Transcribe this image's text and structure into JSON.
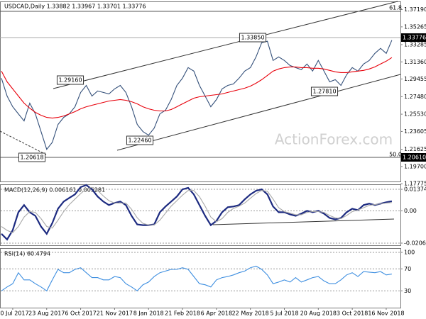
{
  "chart_data": [
    {
      "type": "line",
      "title": "USDCAD,Daily 1.33882 1.33967 1.33701 1.33776",
      "watermark": "ActionForex.com",
      "categories": [
        null,
        null,
        "10 Jul 2017",
        null,
        null,
        null,
        null,
        null,
        "23 Aug 2017",
        null,
        null,
        null,
        null,
        null,
        "6 Oct 2017",
        null,
        null,
        null,
        null,
        null,
        "21 Nov 2017",
        null,
        null,
        null,
        null,
        null,
        "8 Jan 2018",
        null,
        null,
        null,
        null,
        null,
        "21 Feb 2018",
        null,
        null,
        null,
        null,
        null,
        "6 Apr 2018",
        null,
        null,
        null,
        null,
        null,
        "22 May 2018",
        null,
        null,
        null,
        null,
        null,
        "5 Jul 2018",
        null,
        null,
        null,
        null,
        null,
        "20 Aug 2018",
        null,
        null,
        null,
        null,
        null,
        "3 Oct 2018",
        null,
        null,
        null,
        null,
        null,
        "16 Nov 2018",
        null
      ],
      "series": [
        {
          "color": "#34507a",
          "values": [
            1.2954,
            1.2755,
            1.2636,
            1.2557,
            1.2478,
            1.2676,
            1.2557,
            1.2359,
            1.2161,
            1.224,
            1.2438,
            1.2517,
            1.2557,
            1.2636,
            1.2795,
            1.2874,
            1.2755,
            1.2811,
            1.2795,
            1.2779,
            1.2835,
            1.2874,
            1.2795,
            1.2636,
            1.2438,
            1.2359,
            1.2319,
            1.2398,
            1.2557,
            1.2597,
            1.2716,
            1.2874,
            1.2954,
            1.3072,
            1.3033,
            1.2874,
            1.2755,
            1.2636,
            1.2716,
            1.2835,
            1.2874,
            1.289,
            1.2954,
            1.3033,
            1.3072,
            1.3191,
            1.335,
            1.3366,
            1.3152,
            1.3191,
            1.3152,
            1.3096,
            1.3072,
            1.3049,
            1.3112,
            1.3033,
            1.3152,
            1.3033,
            1.2914,
            1.2938,
            1.2874,
            1.2993,
            1.3072,
            1.3033,
            1.3112,
            1.3152,
            1.3231,
            1.3287,
            1.3231,
            1.3378
          ]
        },
        {
          "color": "#e8000b",
          "values": [
            1.3033,
            1.2914,
            1.2835,
            1.2755,
            1.2676,
            1.262,
            1.2573,
            1.2541,
            1.2517,
            1.2509,
            1.2517,
            1.2533,
            1.2557,
            1.2581,
            1.2613,
            1.2636,
            1.2652,
            1.2668,
            1.2684,
            1.27,
            1.2708,
            1.2716,
            1.2708,
            1.2692,
            1.2668,
            1.2636,
            1.2613,
            1.2597,
            1.2589,
            1.2589,
            1.2605,
            1.2636,
            1.2668,
            1.27,
            1.2731,
            1.2747,
            1.2755,
            1.2763,
            1.2771,
            1.2779,
            1.2795,
            1.2811,
            1.2827,
            1.2843,
            1.2866,
            1.2898,
            1.2938,
            1.2985,
            1.3033,
            1.3057,
            1.3072,
            1.308,
            1.308,
            1.3072,
            1.3072,
            1.3065,
            1.3065,
            1.3057,
            1.3041,
            1.3025,
            1.3017,
            1.3017,
            1.3025,
            1.3033,
            1.3041,
            1.3057,
            1.308,
            1.3112,
            1.3144,
            1.3184
          ]
        }
      ],
      "ylim": [
        1.1803,
        1.3802
      ],
      "yticks": [
        {
          "value": 1.3719,
          "label": "1.37190"
        },
        {
          "value": 1.35265,
          "label": "1.35265"
        },
        {
          "value": 1.33285,
          "label": "1.33285"
        },
        {
          "value": 1.3136,
          "label": "1.31360"
        },
        {
          "value": 1.29455,
          "label": "1.29455"
        },
        {
          "value": 1.2748,
          "label": "1.27480"
        },
        {
          "value": 1.2553,
          "label": "1.25530"
        },
        {
          "value": 1.23605,
          "label": "1.23605"
        },
        {
          "value": 1.21625,
          "label": "1.21625"
        },
        {
          "value": 1.197,
          "label": "1.19700"
        },
        {
          "value": 1.17775,
          "label": "1.17775"
        }
      ],
      "price_labels": [
        "1.33776",
        "1.20610"
      ],
      "annotations": [
        "1.33850",
        "1.29160",
        "1.22460",
        "1.20618",
        "1.27810",
        "61.8",
        "50.0"
      ],
      "grid": false
    },
    {
      "type": "line",
      "title": "MACD(12,26,9) 0.006161 0.005281",
      "series": [
        {
          "color": "#1c2a80",
          "values": [
            -0.01466,
            -0.01832,
            -0.01237,
            -0.00092,
            0.00366,
            -0.00092,
            -0.00321,
            -0.01008,
            -0.01466,
            -0.00779,
            0.00137,
            0.00595,
            0.00824,
            0.01053,
            0.01511,
            0.01649,
            0.01374,
            0.00916,
            0.00595,
            0.00366,
            0.00504,
            0.00595,
            0.00366,
            -0.00321,
            -0.0087,
            -0.00916,
            -0.00916,
            -0.0087,
            -0.00092,
            0.00275,
            0.00595,
            0.00916,
            0.01374,
            0.01466,
            0.01053,
            0.00366,
            -0.00321,
            -0.00916,
            -0.00641,
            -0.00092,
            0.00229,
            0.00275,
            0.00366,
            0.00733,
            0.01053,
            0.01282,
            0.01374,
            0.01053,
            0.00275,
            -0.00092,
            -0.00092,
            -0.00229,
            -0.00321,
            -0.00183,
            0,
            -0.00092,
            0,
            -0.00183,
            -0.00458,
            -0.0055,
            -0.00458,
            -0.00092,
            0.00137,
            0.00046,
            0.00366,
            0.00458,
            0.00366,
            0.00458,
            0.0055,
            0.00616
          ]
        },
        {
          "color": "#a9a9a9",
          "values": [
            -0.01,
            -0.0125,
            -0.014,
            -0.01,
            -0.004,
            -0.0005,
            -0.001,
            -0.005,
            -0.01,
            -0.011,
            -0.006,
            -0.0005,
            0.004,
            0.0075,
            0.011,
            0.014,
            0.015,
            0.013,
            0.0095,
            0.0065,
            0.005,
            0.005,
            0.005,
            0.001,
            -0.0045,
            -0.008,
            -0.009,
            -0.009,
            -0.006,
            -0.0015,
            0.003,
            0.0065,
            0.01,
            0.013,
            0.013,
            0.009,
            0.003,
            -0.004,
            -0.007,
            -0.005,
            -0.001,
            0.0015,
            0.003,
            0.005,
            0.008,
            0.011,
            0.013,
            0.0125,
            0.0075,
            0.002,
            -0.0005,
            -0.0015,
            -0.0025,
            -0.0025,
            -0.001,
            -0.0005,
            -0.0005,
            -0.001,
            -0.003,
            -0.0045,
            -0.005,
            -0.003,
            -0.0005,
            0.0005,
            0.002,
            0.0035,
            0.004,
            0.0045,
            0.005,
            0.00528
          ]
        }
      ],
      "ylim": [
        -0.02202,
        0.01649
      ],
      "yticks": [
        0.013745,
        {
          "value": 0,
          "label": "0.00"
        },
        -0.020652
      ],
      "grid": true
    },
    {
      "type": "line",
      "title": "RSI(14) 60.4794",
      "series": [
        {
          "color": "#3d8ee0",
          "values": [
            30,
            37,
            43,
            63,
            50,
            50,
            43,
            37,
            30,
            50,
            69,
            63,
            63,
            69,
            72,
            63,
            54,
            54,
            50,
            50,
            56,
            54,
            43,
            37,
            30,
            41,
            46,
            56,
            63,
            66,
            69,
            69,
            72,
            69,
            56,
            43,
            41,
            37,
            50,
            54,
            56,
            59,
            63,
            66,
            72,
            75,
            69,
            59,
            43,
            46,
            50,
            46,
            54,
            46,
            50,
            54,
            56,
            48,
            43,
            43,
            50,
            59,
            63,
            56,
            65,
            64,
            63,
            65,
            59,
            60.4794
          ]
        }
      ],
      "ylim": [
        0,
        100
      ],
      "yticks": [
        100,
        70,
        30
      ],
      "grid": true
    }
  ]
}
